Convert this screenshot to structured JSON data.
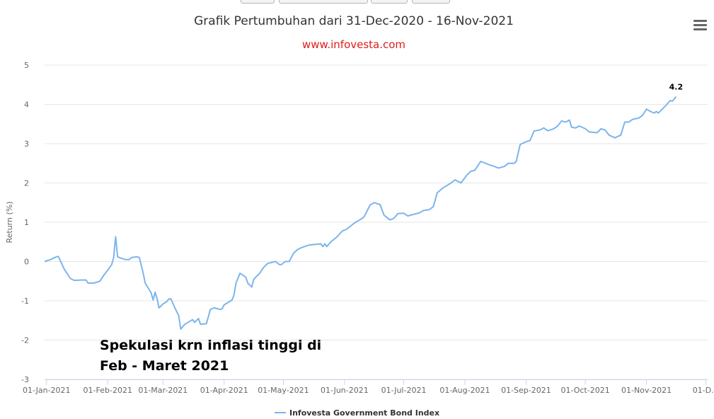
{
  "header": {
    "title": "Grafik Pertumbuhan dari 31-Dec-2020 - 16-Nov-2021",
    "subtitle": "www.infovesta.com",
    "subtitle_color": "#e11b1b",
    "menu_icon": "hamburger-menu-icon"
  },
  "annotation": {
    "line1": "Spekulasi krn inflasi tinggi di",
    "line2": "Feb - Maret 2021"
  },
  "colors": {
    "series": "#7cb5ec",
    "grid": "#e6e6e6",
    "axis_text": "#666666"
  },
  "chart_data": {
    "type": "line",
    "title": "Grafik Pertumbuhan dari 31-Dec-2020 - 16-Nov-2021",
    "subtitle": "www.infovesta.com",
    "xlabel": "",
    "ylabel": "Return (%)",
    "xlim": [
      "2020-12-31",
      "2021-12-02"
    ],
    "ylim": [
      -3,
      5
    ],
    "x_ticks": [
      "01-Jan-2021",
      "01-Feb-2021",
      "01-Mar-2021",
      "01-Apr-2021",
      "01-May-2021",
      "01-Jun-2021",
      "01-Jul-2021",
      "01-Aug-2021",
      "01-Sep-2021",
      "01-Oct-2021",
      "01-Nov-2021",
      "01-D..."
    ],
    "y_ticks": [
      "5",
      "4",
      "3",
      "2",
      "1",
      "0",
      "-1",
      "-2",
      "-3"
    ],
    "grid": "horizontal",
    "legend_position": "bottom-center",
    "last_value_label": "4.2",
    "series": [
      {
        "name": "Infovesta Government Bond Index",
        "color": "#7cb5ec",
        "points": [
          [
            "2020-12-31",
            0.0
          ],
          [
            "2021-01-03",
            0.05
          ],
          [
            "2021-01-06",
            0.12
          ],
          [
            "2021-01-07",
            0.13
          ],
          [
            "2021-01-08",
            0.02
          ],
          [
            "2021-01-10",
            -0.2
          ],
          [
            "2021-01-12",
            -0.35
          ],
          [
            "2021-01-13",
            -0.43
          ],
          [
            "2021-01-15",
            -0.48
          ],
          [
            "2021-01-19",
            -0.47
          ],
          [
            "2021-01-21",
            -0.47
          ],
          [
            "2021-01-22",
            -0.55
          ],
          [
            "2021-01-25",
            -0.55
          ],
          [
            "2021-01-28",
            -0.5
          ],
          [
            "2021-01-30",
            -0.35
          ],
          [
            "2021-02-01",
            -0.22
          ],
          [
            "2021-02-03",
            -0.08
          ],
          [
            "2021-02-04",
            0.1
          ],
          [
            "2021-02-05",
            0.63
          ],
          [
            "2021-02-06",
            0.12
          ],
          [
            "2021-02-08",
            0.08
          ],
          [
            "2021-02-10",
            0.05
          ],
          [
            "2021-02-12",
            0.05
          ],
          [
            "2021-02-13",
            0.1
          ],
          [
            "2021-02-16",
            0.12
          ],
          [
            "2021-02-17",
            0.1
          ],
          [
            "2021-02-19",
            -0.3
          ],
          [
            "2021-02-20",
            -0.55
          ],
          [
            "2021-02-23",
            -0.8
          ],
          [
            "2021-02-24",
            -0.98
          ],
          [
            "2021-02-25",
            -0.78
          ],
          [
            "2021-02-26",
            -0.95
          ],
          [
            "2021-02-27",
            -1.18
          ],
          [
            "2021-03-01",
            -1.08
          ],
          [
            "2021-03-03",
            -1.02
          ],
          [
            "2021-03-04",
            -0.95
          ],
          [
            "2021-03-05",
            -0.95
          ],
          [
            "2021-03-07",
            -1.18
          ],
          [
            "2021-03-09",
            -1.38
          ],
          [
            "2021-03-10",
            -1.72
          ],
          [
            "2021-03-12",
            -1.6
          ],
          [
            "2021-03-16",
            -1.48
          ],
          [
            "2021-03-17",
            -1.55
          ],
          [
            "2021-03-19",
            -1.45
          ],
          [
            "2021-03-20",
            -1.6
          ],
          [
            "2021-03-23",
            -1.58
          ],
          [
            "2021-03-25",
            -1.22
          ],
          [
            "2021-03-27",
            -1.18
          ],
          [
            "2021-03-30",
            -1.22
          ],
          [
            "2021-03-31",
            -1.2
          ],
          [
            "2021-04-01",
            -1.1
          ],
          [
            "2021-04-05",
            -0.98
          ],
          [
            "2021-04-06",
            -0.85
          ],
          [
            "2021-04-07",
            -0.55
          ],
          [
            "2021-04-09",
            -0.3
          ],
          [
            "2021-04-12",
            -0.4
          ],
          [
            "2021-04-13",
            -0.55
          ],
          [
            "2021-04-15",
            -0.65
          ],
          [
            "2021-04-16",
            -0.45
          ],
          [
            "2021-04-19",
            -0.3
          ],
          [
            "2021-04-21",
            -0.15
          ],
          [
            "2021-04-23",
            -0.05
          ],
          [
            "2021-04-27",
            0.0
          ],
          [
            "2021-04-29",
            -0.08
          ],
          [
            "2021-04-30",
            -0.08
          ],
          [
            "2021-05-02",
            0.0
          ],
          [
            "2021-05-04",
            0.0
          ],
          [
            "2021-05-06",
            0.2
          ],
          [
            "2021-05-08",
            0.3
          ],
          [
            "2021-05-10",
            0.35
          ],
          [
            "2021-05-14",
            0.42
          ],
          [
            "2021-05-20",
            0.45
          ],
          [
            "2021-05-21",
            0.38
          ],
          [
            "2021-05-22",
            0.45
          ],
          [
            "2021-05-23",
            0.38
          ],
          [
            "2021-05-25",
            0.5
          ],
          [
            "2021-05-28",
            0.62
          ],
          [
            "2021-05-31",
            0.78
          ],
          [
            "2021-06-02",
            0.82
          ],
          [
            "2021-06-06",
            0.98
          ],
          [
            "2021-06-10",
            1.1
          ],
          [
            "2021-06-11",
            1.15
          ],
          [
            "2021-06-14",
            1.44
          ],
          [
            "2021-06-16",
            1.5
          ],
          [
            "2021-06-19",
            1.45
          ],
          [
            "2021-06-21",
            1.18
          ],
          [
            "2021-06-24",
            1.06
          ],
          [
            "2021-06-26",
            1.1
          ],
          [
            "2021-06-28",
            1.22
          ],
          [
            "2021-07-01",
            1.23
          ],
          [
            "2021-07-03",
            1.16
          ],
          [
            "2021-07-06",
            1.2
          ],
          [
            "2021-07-09",
            1.24
          ],
          [
            "2021-07-11",
            1.3
          ],
          [
            "2021-07-14",
            1.32
          ],
          [
            "2021-07-16",
            1.4
          ],
          [
            "2021-07-18",
            1.75
          ],
          [
            "2021-07-21",
            1.88
          ],
          [
            "2021-07-25",
            2.0
          ],
          [
            "2021-07-27",
            2.08
          ],
          [
            "2021-07-30",
            2.0
          ],
          [
            "2021-08-02",
            2.2
          ],
          [
            "2021-08-04",
            2.3
          ],
          [
            "2021-08-06",
            2.32
          ],
          [
            "2021-08-09",
            2.55
          ],
          [
            "2021-08-13",
            2.47
          ],
          [
            "2021-08-16",
            2.42
          ],
          [
            "2021-08-18",
            2.38
          ],
          [
            "2021-08-21",
            2.42
          ],
          [
            "2021-08-23",
            2.5
          ],
          [
            "2021-08-26",
            2.5
          ],
          [
            "2021-08-27",
            2.55
          ],
          [
            "2021-08-29",
            2.98
          ],
          [
            "2021-09-01",
            3.05
          ],
          [
            "2021-09-03",
            3.08
          ],
          [
            "2021-09-05",
            3.32
          ],
          [
            "2021-09-08",
            3.35
          ],
          [
            "2021-09-10",
            3.4
          ],
          [
            "2021-09-12",
            3.33
          ],
          [
            "2021-09-15",
            3.38
          ],
          [
            "2021-09-17",
            3.45
          ],
          [
            "2021-09-19",
            3.58
          ],
          [
            "2021-09-21",
            3.55
          ],
          [
            "2021-09-23",
            3.6
          ],
          [
            "2021-09-24",
            3.42
          ],
          [
            "2021-09-26",
            3.4
          ],
          [
            "2021-09-28",
            3.45
          ],
          [
            "2021-10-01",
            3.38
          ],
          [
            "2021-10-03",
            3.3
          ],
          [
            "2021-10-07",
            3.28
          ],
          [
            "2021-10-09",
            3.38
          ],
          [
            "2021-10-11",
            3.35
          ],
          [
            "2021-10-13",
            3.22
          ],
          [
            "2021-10-16",
            3.15
          ],
          [
            "2021-10-19",
            3.22
          ],
          [
            "2021-10-21",
            3.55
          ],
          [
            "2021-10-23",
            3.55
          ],
          [
            "2021-10-25",
            3.62
          ],
          [
            "2021-10-28",
            3.65
          ],
          [
            "2021-10-30",
            3.72
          ],
          [
            "2021-11-01",
            3.88
          ],
          [
            "2021-11-03",
            3.82
          ],
          [
            "2021-11-05",
            3.78
          ],
          [
            "2021-11-06",
            3.82
          ],
          [
            "2021-11-07",
            3.78
          ],
          [
            "2021-11-09",
            3.88
          ],
          [
            "2021-11-11",
            3.98
          ],
          [
            "2021-11-13",
            4.1
          ],
          [
            "2021-11-14",
            4.08
          ],
          [
            "2021-11-15",
            4.13
          ],
          [
            "2021-11-16",
            4.2
          ]
        ]
      }
    ]
  }
}
